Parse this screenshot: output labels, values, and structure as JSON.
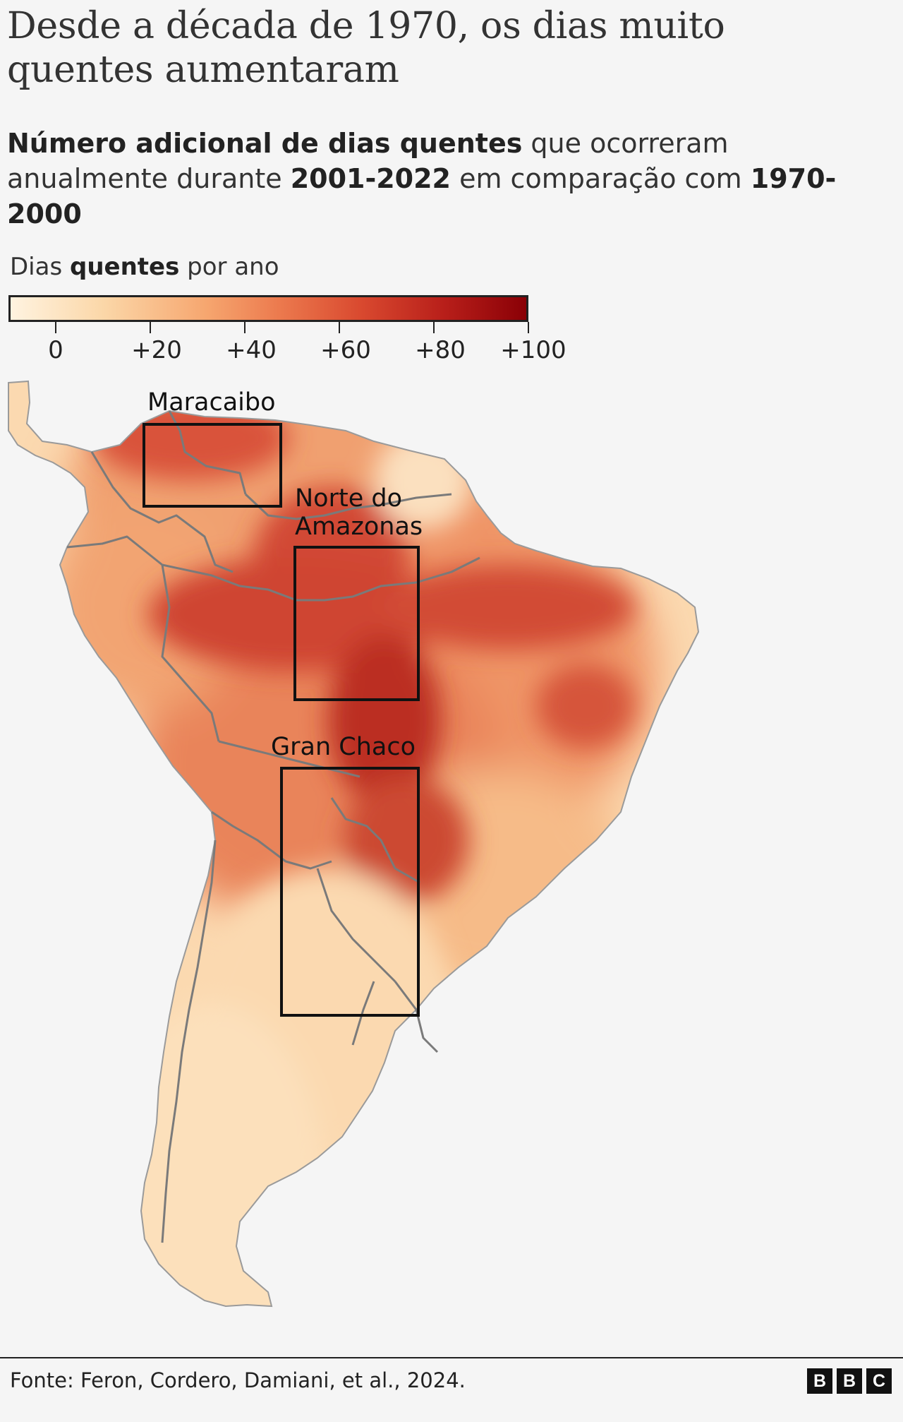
{
  "header": {
    "title": "Desde a década de 1970, os dias muito quentes aumentaram",
    "subtitle": {
      "part1_bold": "Número adicional de dias quentes",
      "part2": " que ocorreram anualmente durante ",
      "part3_bold": "2001-2022",
      "part4": " em comparação com ",
      "part5_bold": "1970-2000"
    }
  },
  "legend": {
    "label_part1": "Dias ",
    "label_bold": "quentes",
    "label_part2": " por ano",
    "ticks": [
      "0",
      "+20",
      "+40",
      "+60",
      "+80",
      "+100"
    ],
    "colors": [
      "#fff3e0",
      "#fbd7a8",
      "#f6a66f",
      "#ec7a4e",
      "#d9492f",
      "#b81f1a",
      "#8a0006"
    ]
  },
  "map": {
    "regions": [
      {
        "name": "Maracaibo",
        "line1": "Maracaibo",
        "line2": ""
      },
      {
        "name": "Norte do Amazonas",
        "line1": "Norte do",
        "line2": "Amazonas"
      },
      {
        "name": "Gran Chaco",
        "line1": "Gran Chaco",
        "line2": ""
      }
    ],
    "colors": {
      "land_low": "#fbd9b0",
      "land_mid": "#f2a06e",
      "land_high": "#d6462f",
      "land_peak": "#b8241c",
      "border": "#7a7a7a",
      "box": "#111111"
    }
  },
  "footer": {
    "source": "Fonte: Feron, Cordero, Damiani, et al., 2024.",
    "logo": [
      "B",
      "B",
      "C"
    ]
  }
}
